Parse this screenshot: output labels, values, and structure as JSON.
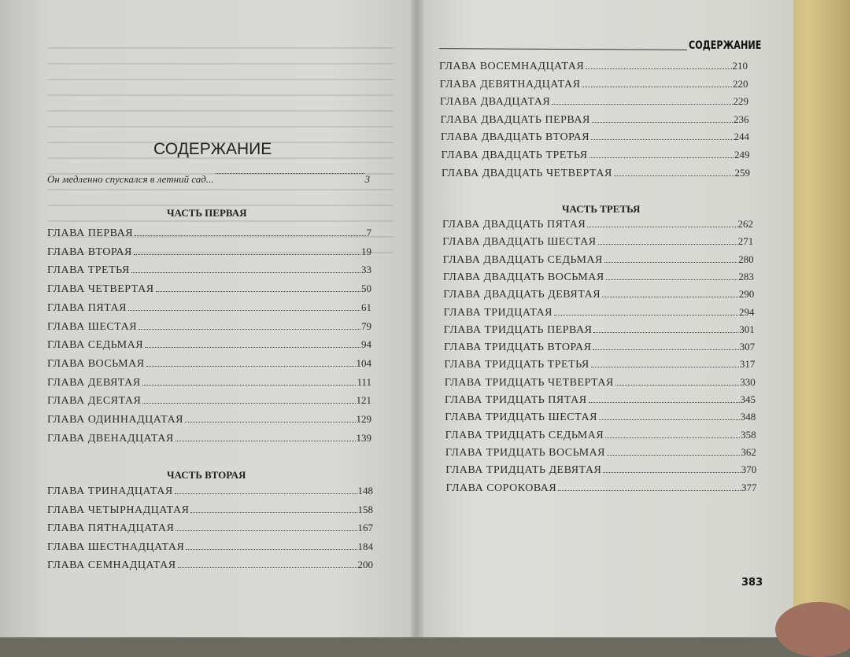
{
  "left_page": {
    "title": "СОДЕРЖАНИЕ",
    "intro": {
      "label": "Он медленно спускался в летний сад...",
      "page": "3"
    },
    "part1": {
      "heading": "ЧАСТЬ ПЕРВАЯ",
      "entries": [
        {
          "label": "ГЛАВА ПЕРВАЯ",
          "page": "7"
        },
        {
          "label": "ГЛАВА ВТОРАЯ",
          "page": "19"
        },
        {
          "label": "ГЛАВА ТРЕТЬЯ",
          "page": "33"
        },
        {
          "label": "ГЛАВА ЧЕТВЕРТАЯ",
          "page": "50"
        },
        {
          "label": "ГЛАВА ПЯТАЯ",
          "page": "61"
        },
        {
          "label": "ГЛАВА ШЕСТАЯ",
          "page": "79"
        },
        {
          "label": "ГЛАВА СЕДЬМАЯ",
          "page": "94"
        },
        {
          "label": "ГЛАВА ВОСЬМАЯ",
          "page": "104"
        },
        {
          "label": "ГЛАВА ДЕВЯТАЯ",
          "page": "111"
        },
        {
          "label": "ГЛАВА ДЕСЯТАЯ",
          "page": "121"
        },
        {
          "label": "ГЛАВА ОДИННАДЦАТАЯ",
          "page": "129"
        },
        {
          "label": "ГЛАВА ДВЕНАДЦАТАЯ",
          "page": "139"
        }
      ]
    },
    "part2": {
      "heading": "ЧАСТЬ ВТОРАЯ",
      "entries": [
        {
          "label": "ГЛАВА ТРИНАДЦАТАЯ",
          "page": "148"
        },
        {
          "label": "ГЛАВА ЧЕТЫРНАДЦАТАЯ",
          "page": "158"
        },
        {
          "label": "ГЛАВА ПЯТНАДЦАТАЯ",
          "page": "167"
        },
        {
          "label": "ГЛАВА ШЕСТНАДЦАТАЯ",
          "page": "184"
        },
        {
          "label": "ГЛАВА СЕМНАДЦАТАЯ",
          "page": "200"
        }
      ]
    }
  },
  "right_page": {
    "header": "СОДЕРЖАНИЕ",
    "page_number": "383",
    "part2_cont": {
      "entries": [
        {
          "label": "ГЛАВА ВОСЕМНАДЦАТАЯ",
          "page": "210"
        },
        {
          "label": "ГЛАВА ДЕВЯТНАДЦАТАЯ",
          "page": "220"
        },
        {
          "label": "ГЛАВА ДВАДЦАТАЯ",
          "page": "229"
        },
        {
          "label": "ГЛАВА ДВАДЦАТЬ ПЕРВАЯ",
          "page": "236"
        },
        {
          "label": "ГЛАВА ДВАДЦАТЬ ВТОРАЯ",
          "page": "244"
        },
        {
          "label": "ГЛАВА ДВАДЦАТЬ ТРЕТЬЯ",
          "page": "249"
        },
        {
          "label": "ГЛАВА ДВАДЦАТЬ ЧЕТВЕРТАЯ",
          "page": "259"
        }
      ]
    },
    "part3": {
      "heading": "ЧАСТЬ ТРЕТЬЯ",
      "entries": [
        {
          "label": "ГЛАВА ДВАДЦАТЬ ПЯТАЯ",
          "page": "262"
        },
        {
          "label": "ГЛАВА ДВАДЦАТЬ ШЕСТАЯ",
          "page": "271"
        },
        {
          "label": "ГЛАВА ДВАДЦАТЬ СЕДЬМАЯ",
          "page": "280"
        },
        {
          "label": "ГЛАВА ДВАДЦАТЬ ВОСЬМАЯ",
          "page": "283"
        },
        {
          "label": "ГЛАВА ДВАДЦАТЬ ДЕВЯТАЯ",
          "page": "290"
        },
        {
          "label": "ГЛАВА ТРИДЦАТАЯ",
          "page": "294"
        },
        {
          "label": "ГЛАВА ТРИДЦАТЬ ПЕРВАЯ",
          "page": "301"
        },
        {
          "label": "ГЛАВА ТРИДЦАТЬ ВТОРАЯ",
          "page": "307"
        },
        {
          "label": "ГЛАВА ТРИДЦАТЬ ТРЕТЬЯ",
          "page": "317"
        },
        {
          "label": "ГЛАВА ТРИДЦАТЬ ЧЕТВЕРТАЯ",
          "page": "330"
        },
        {
          "label": "ГЛАВА ТРИДЦАТЬ ПЯТАЯ",
          "page": "345"
        },
        {
          "label": "ГЛАВА ТРИДЦАТЬ ШЕСТАЯ",
          "page": "348"
        },
        {
          "label": "ГЛАВА ТРИДЦАТЬ СЕДЬМАЯ",
          "page": "358"
        },
        {
          "label": "ГЛАВА ТРИДЦАТЬ ВОСЬМАЯ",
          "page": "362"
        },
        {
          "label": "ГЛАВА ТРИДЦАТЬ ДЕВЯТАЯ",
          "page": "370"
        },
        {
          "label": "ГЛАВА СОРОКОВАЯ",
          "page": "377"
        }
      ]
    }
  }
}
